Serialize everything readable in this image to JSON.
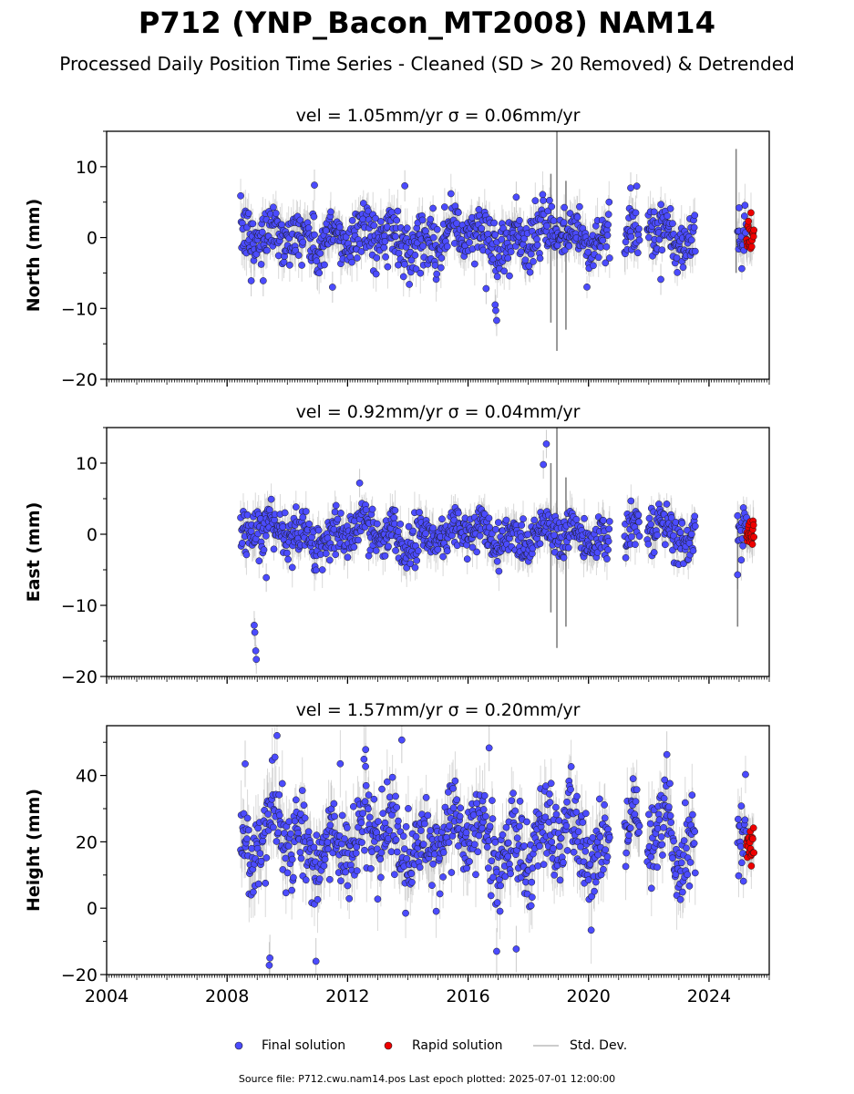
{
  "figure": {
    "title": "P712 (YNP_Bacon_MT2008) NAM14",
    "subtitle": "Processed Daily Position Time Series - Cleaned (SD > 20 Removed) & Detrended",
    "source_note": "Source file: P712.cwu.nam14.pos  Last epoch plotted: 2025-07-01 12:00:00"
  },
  "legend": {
    "final_label": "Final solution",
    "rapid_label": "Rapid solution",
    "sd_label": "Std. Dev."
  },
  "colors": {
    "final": "#4b4bff",
    "rapid": "#ee0000",
    "sd": "#aaaaaa",
    "marker_edge": "#1a1a1a"
  },
  "chart_data": [
    {
      "type": "scatter",
      "panel": "north",
      "title": "vel = 1.05mm/yr   σ = 0.06mm/yr",
      "ylabel": "North (mm)",
      "xlim": [
        2004.0,
        2026.0
      ],
      "ylim": [
        -20,
        15
      ],
      "yticks": [
        -20,
        -10,
        0,
        10
      ],
      "xticks": [
        2004,
        2008,
        2012,
        2016,
        2020,
        2024
      ],
      "series": [
        {
          "name": "Final solution",
          "segments": [
            [
              2008.45,
              2020.7
            ],
            [
              2021.2,
              2021.7
            ],
            [
              2021.95,
              2023.55
            ],
            [
              2024.95,
              2025.25
            ]
          ],
          "amplitude": 2.0,
          "noise_sd": 1.9,
          "sd_typical": 2.2,
          "outliers": [
            [
              2016.9,
              -9.5
            ],
            [
              2016.92,
              -10.3
            ],
            [
              2016.95,
              -11.7
            ],
            [
              2016.6,
              -7.2
            ],
            [
              2013.9,
              7.3
            ],
            [
              2010.9,
              7.4
            ],
            [
              2017.6,
              5.7
            ],
            [
              2021.4,
              7.0
            ],
            [
              2022.4,
              -5.9
            ],
            [
              2008.8,
              -6.1
            ],
            [
              2009.2,
              -6.1
            ],
            [
              2011.5,
              -7.0
            ],
            [
              2025.0,
              4.2
            ]
          ]
        },
        {
          "name": "Rapid solution",
          "segments": [
            [
              2025.25,
              2025.5
            ]
          ],
          "amplitude": 0.0,
          "noise_sd": 1.2,
          "sd_typical": 2.0
        }
      ],
      "spikes": [
        [
          2018.95,
          -16,
          15
        ],
        [
          2019.25,
          -13,
          8
        ],
        [
          2024.9,
          -5,
          12.5
        ],
        [
          2018.75,
          -12,
          9
        ]
      ]
    },
    {
      "type": "scatter",
      "panel": "east",
      "title": "vel = 0.92mm/yr   σ = 0.04mm/yr",
      "ylabel": "East (mm)",
      "xlim": [
        2004.0,
        2026.0
      ],
      "ylim": [
        -20,
        15
      ],
      "yticks": [
        -20,
        -10,
        0,
        10
      ],
      "xticks": [
        2004,
        2008,
        2012,
        2016,
        2020,
        2024
      ],
      "series": [
        {
          "name": "Final solution",
          "segments": [
            [
              2008.45,
              2020.7
            ],
            [
              2021.2,
              2021.7
            ],
            [
              2021.95,
              2023.55
            ],
            [
              2024.95,
              2025.25
            ]
          ],
          "amplitude": 1.8,
          "noise_sd": 1.6,
          "sd_typical": 2.0,
          "outliers": [
            [
              2008.9,
              -12.8
            ],
            [
              2008.92,
              -13.8
            ],
            [
              2008.95,
              -16.4
            ],
            [
              2008.97,
              -17.6
            ],
            [
              2018.5,
              9.8
            ],
            [
              2018.6,
              12.7
            ],
            [
              2009.3,
              -6.1
            ],
            [
              2024.95,
              -5.7
            ],
            [
              2012.4,
              7.2
            ]
          ]
        },
        {
          "name": "Rapid solution",
          "segments": [
            [
              2025.25,
              2025.5
            ]
          ],
          "amplitude": 0.0,
          "noise_sd": 0.9,
          "sd_typical": 2.0
        }
      ],
      "spikes": [
        [
          2018.95,
          -16,
          15
        ],
        [
          2019.25,
          -13,
          8
        ],
        [
          2024.95,
          -13,
          3
        ],
        [
          2018.75,
          -11,
          10
        ]
      ]
    },
    {
      "type": "scatter",
      "panel": "height",
      "title": "vel = 1.57mm/yr   σ = 0.20mm/yr",
      "ylabel": "Height (mm)",
      "xlim": [
        2004.0,
        2026.0
      ],
      "ylim": [
        -20,
        55
      ],
      "yticks": [
        -20,
        0,
        20,
        40
      ],
      "xticks": [
        2004,
        2008,
        2012,
        2016,
        2020,
        2024
      ],
      "xticklabels": [
        "2004",
        "2008",
        "2012",
        "2016",
        "2020",
        "2024"
      ],
      "series": [
        {
          "name": "Final solution",
          "segments": [
            [
              2008.45,
              2020.7
            ],
            [
              2021.2,
              2021.7
            ],
            [
              2021.95,
              2023.55
            ],
            [
              2024.95,
              2025.25
            ]
          ],
          "amplitude": 9.0,
          "noise_sd": 6.5,
          "mean": 20,
          "sd_typical": 7.0,
          "outliers": [
            [
              2013.8,
              50.7
            ],
            [
              2012.6,
              47.8
            ],
            [
              2009.4,
              -17.2
            ],
            [
              2009.42,
              -15.0
            ],
            [
              2010.95,
              -16.0
            ],
            [
              2016.95,
              -13.0
            ],
            [
              2017.6,
              -12.3
            ],
            [
              2022.6,
              46.3
            ],
            [
              2008.6,
              43.5
            ],
            [
              2016.7,
              48.3
            ]
          ]
        },
        {
          "name": "Rapid solution",
          "segments": [
            [
              2025.25,
              2025.5
            ]
          ],
          "amplitude": 0.0,
          "noise_sd": 2.8,
          "mean": 18,
          "sd_typical": 5.0
        }
      ],
      "spikes": []
    }
  ]
}
